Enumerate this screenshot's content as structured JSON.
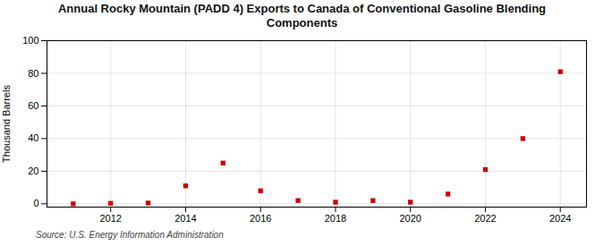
{
  "chart_data": {
    "type": "scatter",
    "title": "Annual Rocky Mountain (PADD 4) Exports to Canada of Conventional Gasoline Blending\nComponents",
    "ylabel": "Thousand Barrels",
    "source": "Source: U.S. Energy Information Administration",
    "x": [
      2011,
      2012,
      2013,
      2014,
      2015,
      2016,
      2017,
      2018,
      2019,
      2020,
      2021,
      2022,
      2023,
      2024
    ],
    "values": [
      0,
      0.3,
      0.5,
      11,
      25,
      8,
      2,
      1,
      2,
      1,
      6,
      21,
      40,
      81
    ],
    "color": "#cc0000",
    "marker": "square",
    "xlim": [
      2010.3,
      2024.7
    ],
    "xticks": [
      2012,
      2014,
      2016,
      2018,
      2020,
      2022,
      2024
    ],
    "ylim": [
      -2,
      100
    ],
    "yticks": [
      0,
      20,
      40,
      60,
      80,
      100
    ],
    "grid": true
  }
}
